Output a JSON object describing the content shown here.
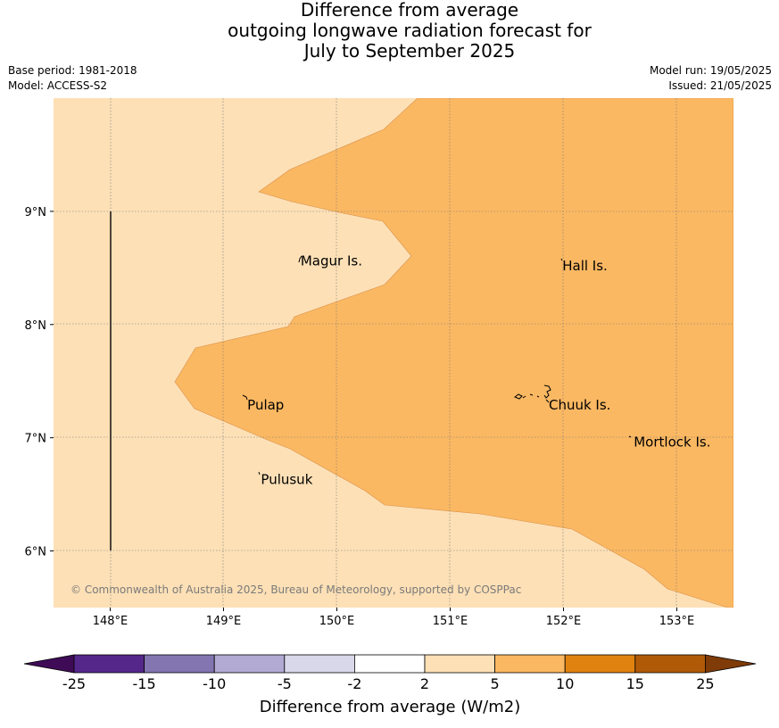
{
  "header": {
    "title_lines": [
      "Difference from average",
      "outgoing longwave radiation forecast for",
      "July to September 2025"
    ],
    "base_period": "Base period: 1981-2018",
    "model": "Model: ACCESS-S2",
    "model_run": "Model run: 19/05/2025",
    "issued": "Issued: 21/05/2025"
  },
  "map": {
    "lon_range": [
      147.5,
      153.5
    ],
    "lat_range": [
      5.5,
      10.0
    ],
    "lon_ticks": [
      {
        "value": 148,
        "label": "148°E"
      },
      {
        "value": 149,
        "label": "149°E"
      },
      {
        "value": 150,
        "label": "150°E"
      },
      {
        "value": 151,
        "label": "151°E"
      },
      {
        "value": 152,
        "label": "152°E"
      },
      {
        "value": 153,
        "label": "153°E"
      }
    ],
    "lat_ticks": [
      {
        "value": 9,
        "label": "9°N"
      },
      {
        "value": 8,
        "label": "8°N"
      },
      {
        "value": 7,
        "label": "7°N"
      },
      {
        "value": 6,
        "label": "6°N"
      }
    ],
    "places": [
      {
        "name": "Magur Is.",
        "lon": 149.68,
        "lat": 8.56
      },
      {
        "name": "Hall Is.",
        "lon": 151.99,
        "lat": 8.52
      },
      {
        "name": "Pulap",
        "lon": 149.21,
        "lat": 7.29
      },
      {
        "name": "Chuuk Is.",
        "lon": 151.87,
        "lat": 7.29
      },
      {
        "name": "Mortlock Is.",
        "lon": 152.62,
        "lat": 6.96
      },
      {
        "name": "Pulusuk",
        "lon": 149.33,
        "lat": 6.63
      }
    ],
    "zones": [
      {
        "range": "2 to 5",
        "color": "#fde0b6"
      },
      {
        "range": "5 to 10",
        "color": "#fbb862"
      }
    ],
    "copyright": "© Commonwealth of Australia 2025, Bureau of Meteorology, supported by COSPPac"
  },
  "colorbar": {
    "title": "Difference from average (W/m2)",
    "tick_labels": [
      "-25",
      "-15",
      "-10",
      "-5",
      "-2",
      "2",
      "5",
      "10",
      "15",
      "25"
    ],
    "colors": [
      "#3f0b57",
      "#55278a",
      "#8275b0",
      "#b3aad3",
      "#d9d8eb",
      "#ffffff",
      "#fde0b6",
      "#fbb862",
      "#e0820f",
      "#b05a07",
      "#7f3b08"
    ]
  }
}
